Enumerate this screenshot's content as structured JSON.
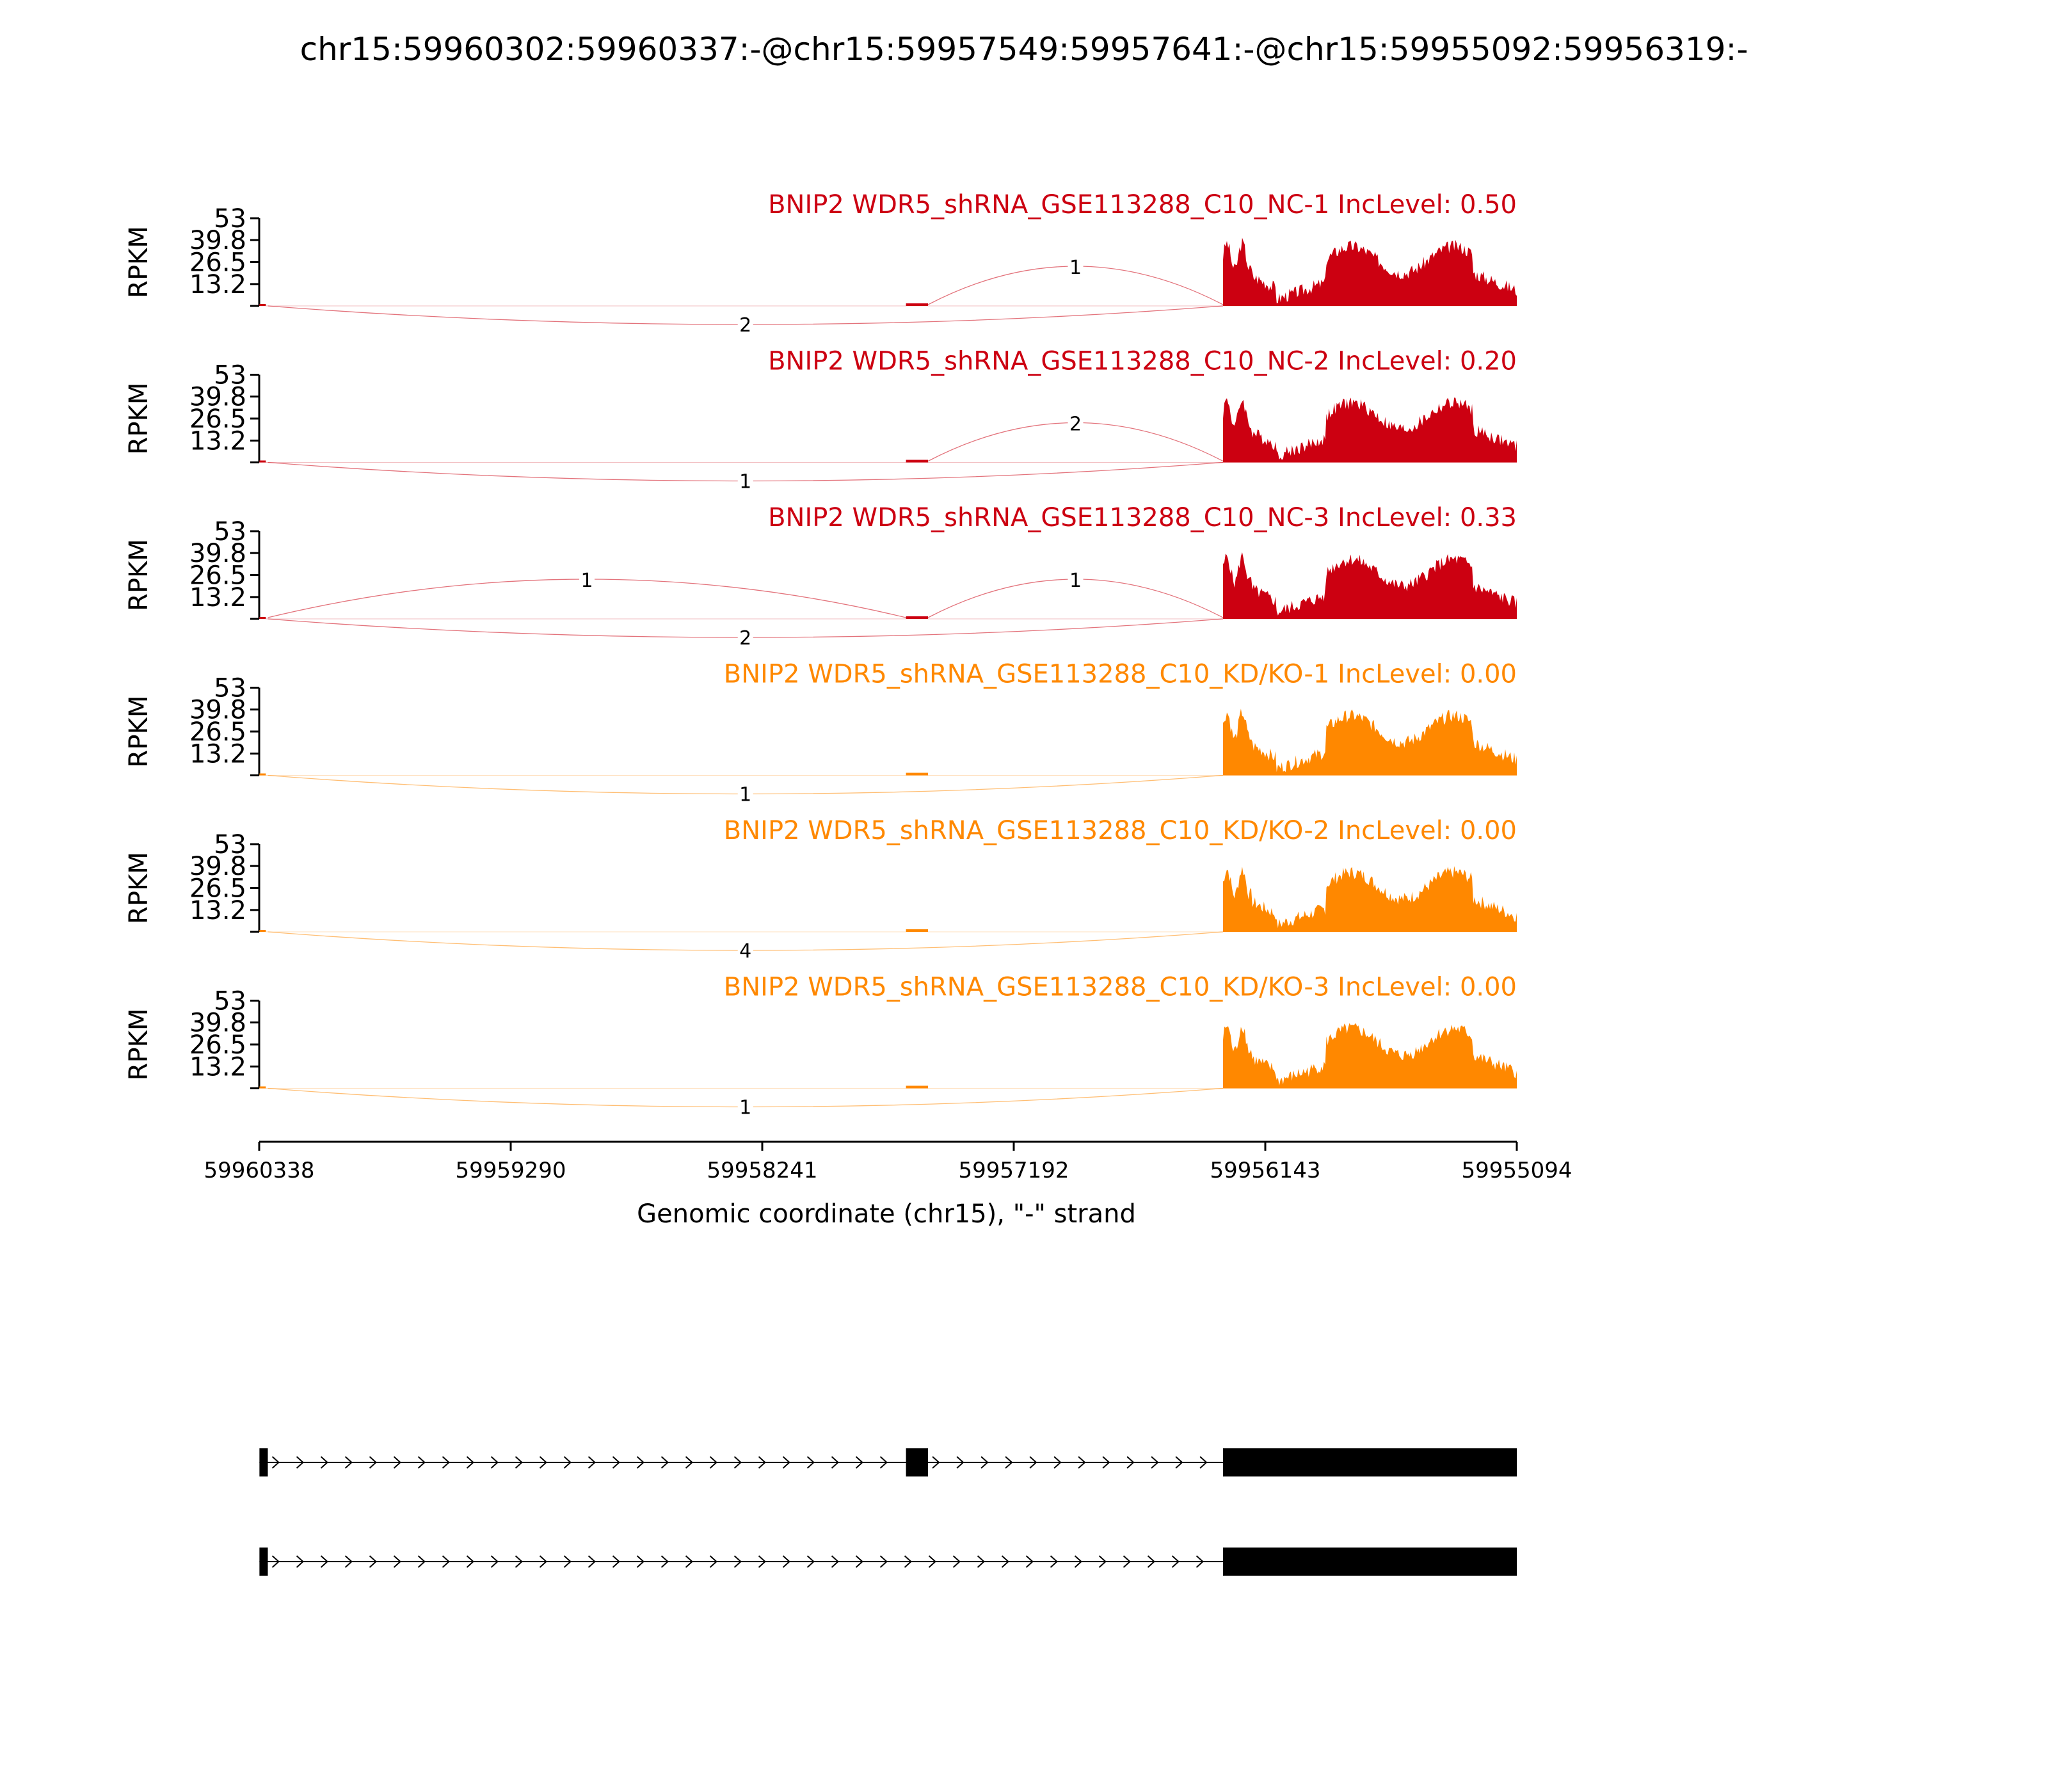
{
  "title": "chr15:59960302:59960337:-@chr15:59957549:59957641:-@chr15:59955092:59956319:-",
  "chart_data": {
    "type": "area",
    "ylabel": "RPKM",
    "yticks": [
      "53",
      "39.8",
      "26.5",
      "13.2"
    ],
    "ylim": [
      0,
      53
    ],
    "xlabel": "Genomic coordinate (chr15), \"-\" strand",
    "xticks": [
      "59960338",
      "59959290",
      "59958241",
      "59957192",
      "59956143",
      "59955094"
    ],
    "xlim": [
      59960338,
      59955094
    ],
    "tracks": [
      {
        "title": "BNIP2 WDR5_shRNA_GSE113288_C10_NC-1 IncLevel: 0.50",
        "group": "NC",
        "color": "#cc0011",
        "junctions": [
          {
            "from": 59960302,
            "to": 59957641,
            "count": 0,
            "side": "none"
          },
          {
            "from": 59957549,
            "to": 59956319,
            "count": 1,
            "side": "above"
          },
          {
            "from": 59960302,
            "to": 59956319,
            "count": 2,
            "side": "below"
          }
        ]
      },
      {
        "title": "BNIP2 WDR5_shRNA_GSE113288_C10_NC-2 IncLevel: 0.20",
        "group": "NC",
        "color": "#cc0011",
        "junctions": [
          {
            "from": 59957549,
            "to": 59956319,
            "count": 2,
            "side": "above"
          },
          {
            "from": 59960302,
            "to": 59956319,
            "count": 1,
            "side": "below"
          }
        ]
      },
      {
        "title": "BNIP2 WDR5_shRNA_GSE113288_C10_NC-3 IncLevel: 0.33",
        "group": "NC",
        "color": "#cc0011",
        "junctions": [
          {
            "from": 59960302,
            "to": 59957641,
            "count": 1,
            "side": "above"
          },
          {
            "from": 59957549,
            "to": 59956319,
            "count": 1,
            "side": "above"
          },
          {
            "from": 59960302,
            "to": 59956319,
            "count": 2,
            "side": "below"
          }
        ]
      },
      {
        "title": "BNIP2 WDR5_shRNA_GSE113288_C10_KD/KO-1 IncLevel: 0.00",
        "group": "KD/KO",
        "color": "#ff8800",
        "junctions": [
          {
            "from": 59960302,
            "to": 59956319,
            "count": 1,
            "side": "below"
          }
        ]
      },
      {
        "title": "BNIP2 WDR5_shRNA_GSE113288_C10_KD/KO-2 IncLevel: 0.00",
        "group": "KD/KO",
        "color": "#ff8800",
        "junctions": [
          {
            "from": 59960302,
            "to": 59956319,
            "count": 4,
            "side": "below"
          }
        ]
      },
      {
        "title": "BNIP2 WDR5_shRNA_GSE113288_C10_KD/KO-3 IncLevel: 0.00",
        "group": "KD/KO",
        "color": "#ff8800",
        "junctions": [
          {
            "from": 59960302,
            "to": 59956319,
            "count": 1,
            "side": "below"
          }
        ]
      }
    ],
    "exons": [
      {
        "start": 59960337,
        "end": 59960302
      },
      {
        "start": 59957641,
        "end": 59957549
      },
      {
        "start": 59956319,
        "end": 59955094
      }
    ],
    "isoforms": [
      {
        "exons": [
          0,
          1,
          2
        ]
      },
      {
        "exons": [
          0,
          2
        ]
      }
    ]
  }
}
